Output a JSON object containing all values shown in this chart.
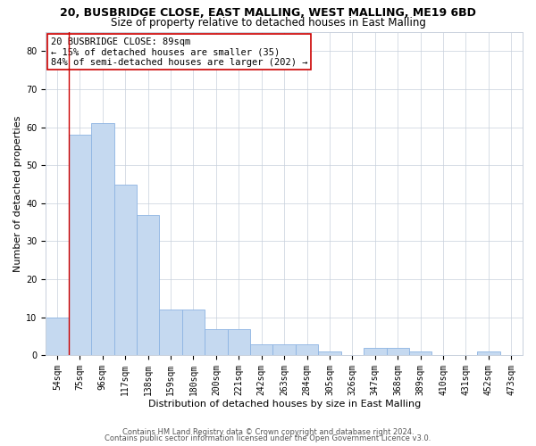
{
  "title1": "20, BUSBRIDGE CLOSE, EAST MALLING, WEST MALLING, ME19 6BD",
  "title2": "Size of property relative to detached houses in East Malling",
  "xlabel": "Distribution of detached houses by size in East Malling",
  "ylabel": "Number of detached properties",
  "bar_heights": [
    10,
    58,
    61,
    45,
    37,
    12,
    12,
    7,
    7,
    3,
    3,
    3,
    1,
    0,
    2,
    2,
    1,
    0,
    0,
    1,
    0
  ],
  "bar_labels": [
    "54sqm",
    "75sqm",
    "96sqm",
    "117sqm",
    "138sqm",
    "159sqm",
    "180sqm",
    "200sqm",
    "221sqm",
    "242sqm",
    "263sqm",
    "284sqm",
    "305sqm",
    "326sqm",
    "347sqm",
    "368sqm",
    "389sqm",
    "410sqm",
    "431sqm",
    "452sqm",
    "473sqm"
  ],
  "bar_color": "#C5D9F0",
  "bar_edge_color": "#8DB4E2",
  "annotation_line1": "20 BUSBRIDGE CLOSE: 89sqm",
  "annotation_line2": "← 15% of detached houses are smaller (35)",
  "annotation_line3": "84% of semi-detached houses are larger (202) →",
  "vline_color": "#cc0000",
  "box_edge_color": "#cc0000",
  "ylim": [
    0,
    85
  ],
  "yticks": [
    0,
    10,
    20,
    30,
    40,
    50,
    60,
    70,
    80
  ],
  "grid_color": "#c8d0dc",
  "footer1": "Contains HM Land Registry data © Crown copyright and database right 2024.",
  "footer2": "Contains public sector information licensed under the Open Government Licence v3.0.",
  "title_fontsize": 9,
  "subtitle_fontsize": 8.5,
  "ylabel_fontsize": 8,
  "xlabel_fontsize": 8,
  "tick_fontsize": 7,
  "footer_fontsize": 6,
  "annot_fontsize": 7.5,
  "background_color": "#ffffff"
}
